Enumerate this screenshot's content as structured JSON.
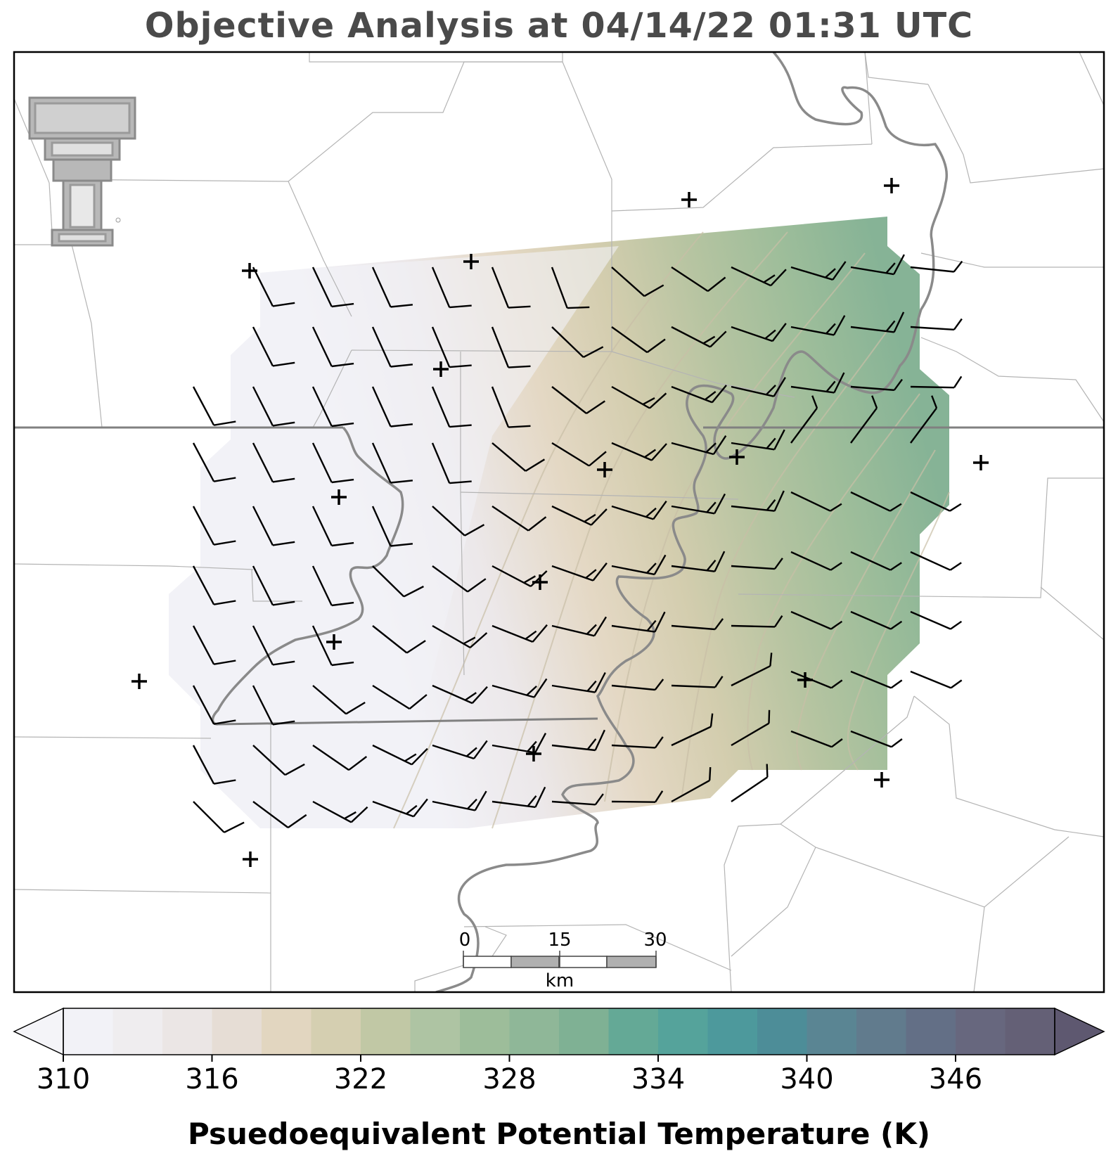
{
  "title": "Objective Analysis at 04/14/22 01:31 UTC",
  "logo": {
    "icon": "texas-tech-double-t-logo",
    "color": "#9a9a9a"
  },
  "map": {
    "field": "Psuedoequivalent Potential Temperature (K)",
    "wind_barbs": "knots",
    "station_marker": "plus-icon",
    "scale_bar": {
      "labels": [
        "0",
        "15",
        "30"
      ],
      "unit": "km"
    }
  },
  "colorbar": {
    "label": "Psuedoequivalent Potential Temperature (K)",
    "ticks": [
      "310",
      "316",
      "322",
      "328",
      "334",
      "340",
      "346"
    ],
    "min": 310,
    "max": 350,
    "step": 2,
    "colors": [
      "#f2f2f7",
      "#efedef",
      "#ebe6e5",
      "#e6ddd5",
      "#e2d6c0",
      "#d5cfb1",
      "#c1c8a5",
      "#aec4a3",
      "#9dbd9a",
      "#8fb798",
      "#7fb194",
      "#64a996",
      "#55a39b",
      "#4d999c",
      "#4d8d98",
      "#5a8593",
      "#617b8d",
      "#636f86",
      "#67677e",
      "#646076"
    ],
    "under_color": "#f4f4f8",
    "over_color": "#5e5870"
  }
}
